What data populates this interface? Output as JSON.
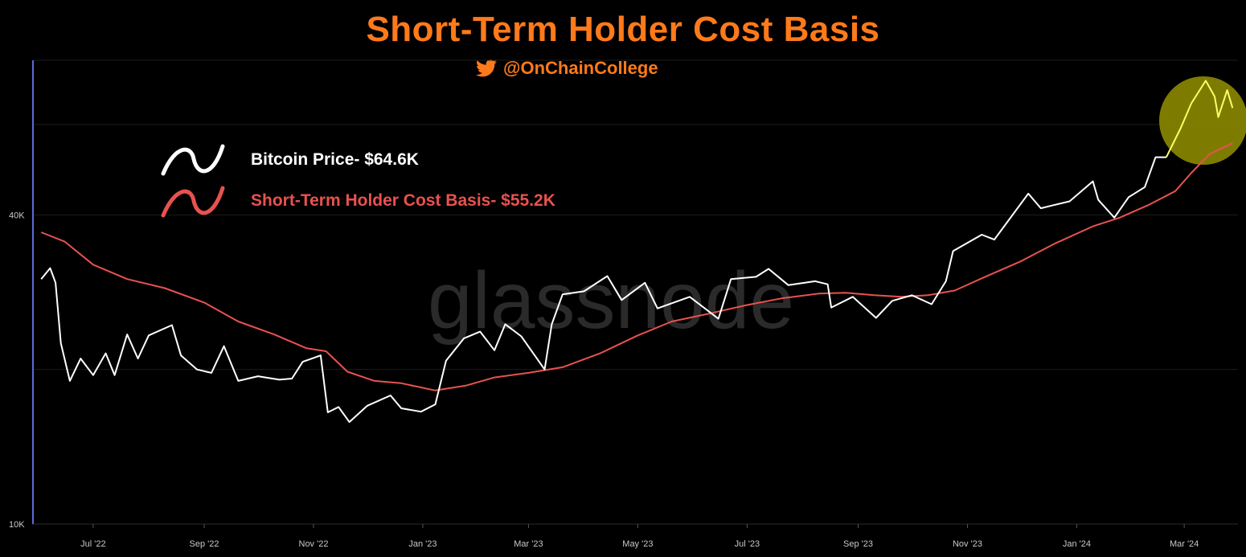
{
  "header": {
    "title": "Short-Term Holder Cost Basis",
    "handle": "@OnChainCollege",
    "accent_color": "#ff7a1a",
    "handle_icon": "twitter-bird-icon"
  },
  "watermark": "glassnode",
  "chart_data": {
    "type": "line",
    "y_scale": "log",
    "ylim": [
      10000,
      80000
    ],
    "x_range": [
      "2022-06-01",
      "2024-03-31"
    ],
    "y_ticks": [
      {
        "value": 10000,
        "label": "10K"
      },
      {
        "value": 40000,
        "label": "40K"
      }
    ],
    "x_ticks": [
      {
        "date": "2022-07-01",
        "label": "Jul '22"
      },
      {
        "date": "2022-09-01",
        "label": "Sep '22"
      },
      {
        "date": "2022-11-01",
        "label": "Nov '22"
      },
      {
        "date": "2023-01-01",
        "label": "Jan '23"
      },
      {
        "date": "2023-03-01",
        "label": "Mar '23"
      },
      {
        "date": "2023-05-01",
        "label": "May '23"
      },
      {
        "date": "2023-07-01",
        "label": "Jul '23"
      },
      {
        "date": "2023-09-01",
        "label": "Sep '23"
      },
      {
        "date": "2023-11-01",
        "label": "Nov '23"
      },
      {
        "date": "2024-01-01",
        "label": "Jan '24"
      },
      {
        "date": "2024-03-01",
        "label": "Mar '24"
      }
    ],
    "grid": true,
    "legend_position": "top-left",
    "series": [
      {
        "name": "Bitcoin Price- $64.6K",
        "color": "#ffffff",
        "highlight_color": "#ffff66",
        "points": [
          [
            "2022-06-02",
            30000
          ],
          [
            "2022-06-07",
            31500
          ],
          [
            "2022-06-10",
            29500
          ],
          [
            "2022-06-13",
            22500
          ],
          [
            "2022-06-18",
            19000
          ],
          [
            "2022-06-24",
            21000
          ],
          [
            "2022-07-01",
            19500
          ],
          [
            "2022-07-08",
            21500
          ],
          [
            "2022-07-13",
            19500
          ],
          [
            "2022-07-20",
            23400
          ],
          [
            "2022-07-26",
            21000
          ],
          [
            "2022-08-01",
            23300
          ],
          [
            "2022-08-14",
            24400
          ],
          [
            "2022-08-19",
            21300
          ],
          [
            "2022-08-28",
            20000
          ],
          [
            "2022-09-05",
            19700
          ],
          [
            "2022-09-12",
            22200
          ],
          [
            "2022-09-20",
            19000
          ],
          [
            "2022-10-01",
            19400
          ],
          [
            "2022-10-13",
            19100
          ],
          [
            "2022-10-20",
            19200
          ],
          [
            "2022-10-26",
            20700
          ],
          [
            "2022-11-05",
            21300
          ],
          [
            "2022-11-09",
            16500
          ],
          [
            "2022-11-15",
            16900
          ],
          [
            "2022-11-21",
            15800
          ],
          [
            "2022-12-01",
            17000
          ],
          [
            "2022-12-14",
            17800
          ],
          [
            "2022-12-20",
            16800
          ],
          [
            "2022-12-31",
            16550
          ],
          [
            "2023-01-08",
            17100
          ],
          [
            "2023-01-14",
            20800
          ],
          [
            "2023-01-24",
            23000
          ],
          [
            "2023-02-02",
            23700
          ],
          [
            "2023-02-10",
            21800
          ],
          [
            "2023-02-16",
            24500
          ],
          [
            "2023-02-25",
            23200
          ],
          [
            "2023-03-10",
            20000
          ],
          [
            "2023-03-14",
            24500
          ],
          [
            "2023-03-20",
            28000
          ],
          [
            "2023-04-01",
            28400
          ],
          [
            "2023-04-14",
            30400
          ],
          [
            "2023-04-22",
            27300
          ],
          [
            "2023-05-05",
            29500
          ],
          [
            "2023-05-12",
            26300
          ],
          [
            "2023-05-30",
            27700
          ],
          [
            "2023-06-15",
            25100
          ],
          [
            "2023-06-22",
            30000
          ],
          [
            "2023-07-06",
            30300
          ],
          [
            "2023-07-13",
            31400
          ],
          [
            "2023-07-24",
            29200
          ],
          [
            "2023-08-08",
            29700
          ],
          [
            "2023-08-15",
            29300
          ],
          [
            "2023-08-17",
            26400
          ],
          [
            "2023-08-29",
            27700
          ],
          [
            "2023-09-11",
            25200
          ],
          [
            "2023-09-20",
            27200
          ],
          [
            "2023-10-01",
            27900
          ],
          [
            "2023-10-12",
            26800
          ],
          [
            "2023-10-20",
            29700
          ],
          [
            "2023-10-24",
            34000
          ],
          [
            "2023-11-09",
            36600
          ],
          [
            "2023-11-16",
            35800
          ],
          [
            "2023-12-05",
            44000
          ],
          [
            "2023-12-12",
            41200
          ],
          [
            "2023-12-18",
            41700
          ],
          [
            "2023-12-28",
            42500
          ],
          [
            "2024-01-10",
            46500
          ],
          [
            "2024-01-13",
            42800
          ],
          [
            "2024-01-22",
            39500
          ],
          [
            "2024-01-30",
            43300
          ],
          [
            "2024-02-08",
            45300
          ],
          [
            "2024-02-14",
            51800
          ],
          [
            "2024-02-20",
            51800
          ],
          [
            "2024-02-28",
            59000
          ],
          [
            "2024-03-05",
            66000
          ],
          [
            "2024-03-13",
            73000
          ],
          [
            "2024-03-18",
            68000
          ],
          [
            "2024-03-20",
            62000
          ],
          [
            "2024-03-25",
            70000
          ],
          [
            "2024-03-28",
            64600
          ]
        ]
      },
      {
        "name": "Short-Term Holder Cost Basis- $55.2K",
        "color": "#e8524f",
        "points": [
          [
            "2022-06-02",
            37000
          ],
          [
            "2022-06-15",
            35500
          ],
          [
            "2022-07-01",
            32000
          ],
          [
            "2022-07-20",
            30000
          ],
          [
            "2022-08-10",
            28800
          ],
          [
            "2022-09-01",
            27000
          ],
          [
            "2022-09-20",
            24800
          ],
          [
            "2022-10-10",
            23400
          ],
          [
            "2022-10-28",
            22000
          ],
          [
            "2022-11-08",
            21700
          ],
          [
            "2022-11-20",
            19800
          ],
          [
            "2022-12-05",
            19000
          ],
          [
            "2022-12-20",
            18800
          ],
          [
            "2023-01-08",
            18200
          ],
          [
            "2023-01-25",
            18600
          ],
          [
            "2023-02-10",
            19300
          ],
          [
            "2023-03-01",
            19700
          ],
          [
            "2023-03-20",
            20200
          ],
          [
            "2023-04-10",
            21500
          ],
          [
            "2023-05-01",
            23300
          ],
          [
            "2023-05-20",
            24800
          ],
          [
            "2023-06-10",
            25700
          ],
          [
            "2023-07-01",
            26700
          ],
          [
            "2023-07-20",
            27500
          ],
          [
            "2023-08-10",
            28100
          ],
          [
            "2023-08-25",
            28200
          ],
          [
            "2023-09-10",
            27900
          ],
          [
            "2023-09-25",
            27700
          ],
          [
            "2023-10-10",
            27900
          ],
          [
            "2023-10-25",
            28500
          ],
          [
            "2023-11-10",
            30200
          ],
          [
            "2023-12-01",
            32500
          ],
          [
            "2023-12-20",
            35200
          ],
          [
            "2024-01-10",
            38000
          ],
          [
            "2024-01-25",
            39500
          ],
          [
            "2024-02-10",
            41800
          ],
          [
            "2024-02-25",
            44500
          ],
          [
            "2024-03-05",
            48300
          ],
          [
            "2024-03-15",
            52500
          ],
          [
            "2024-03-28",
            55200
          ]
        ]
      }
    ]
  }
}
